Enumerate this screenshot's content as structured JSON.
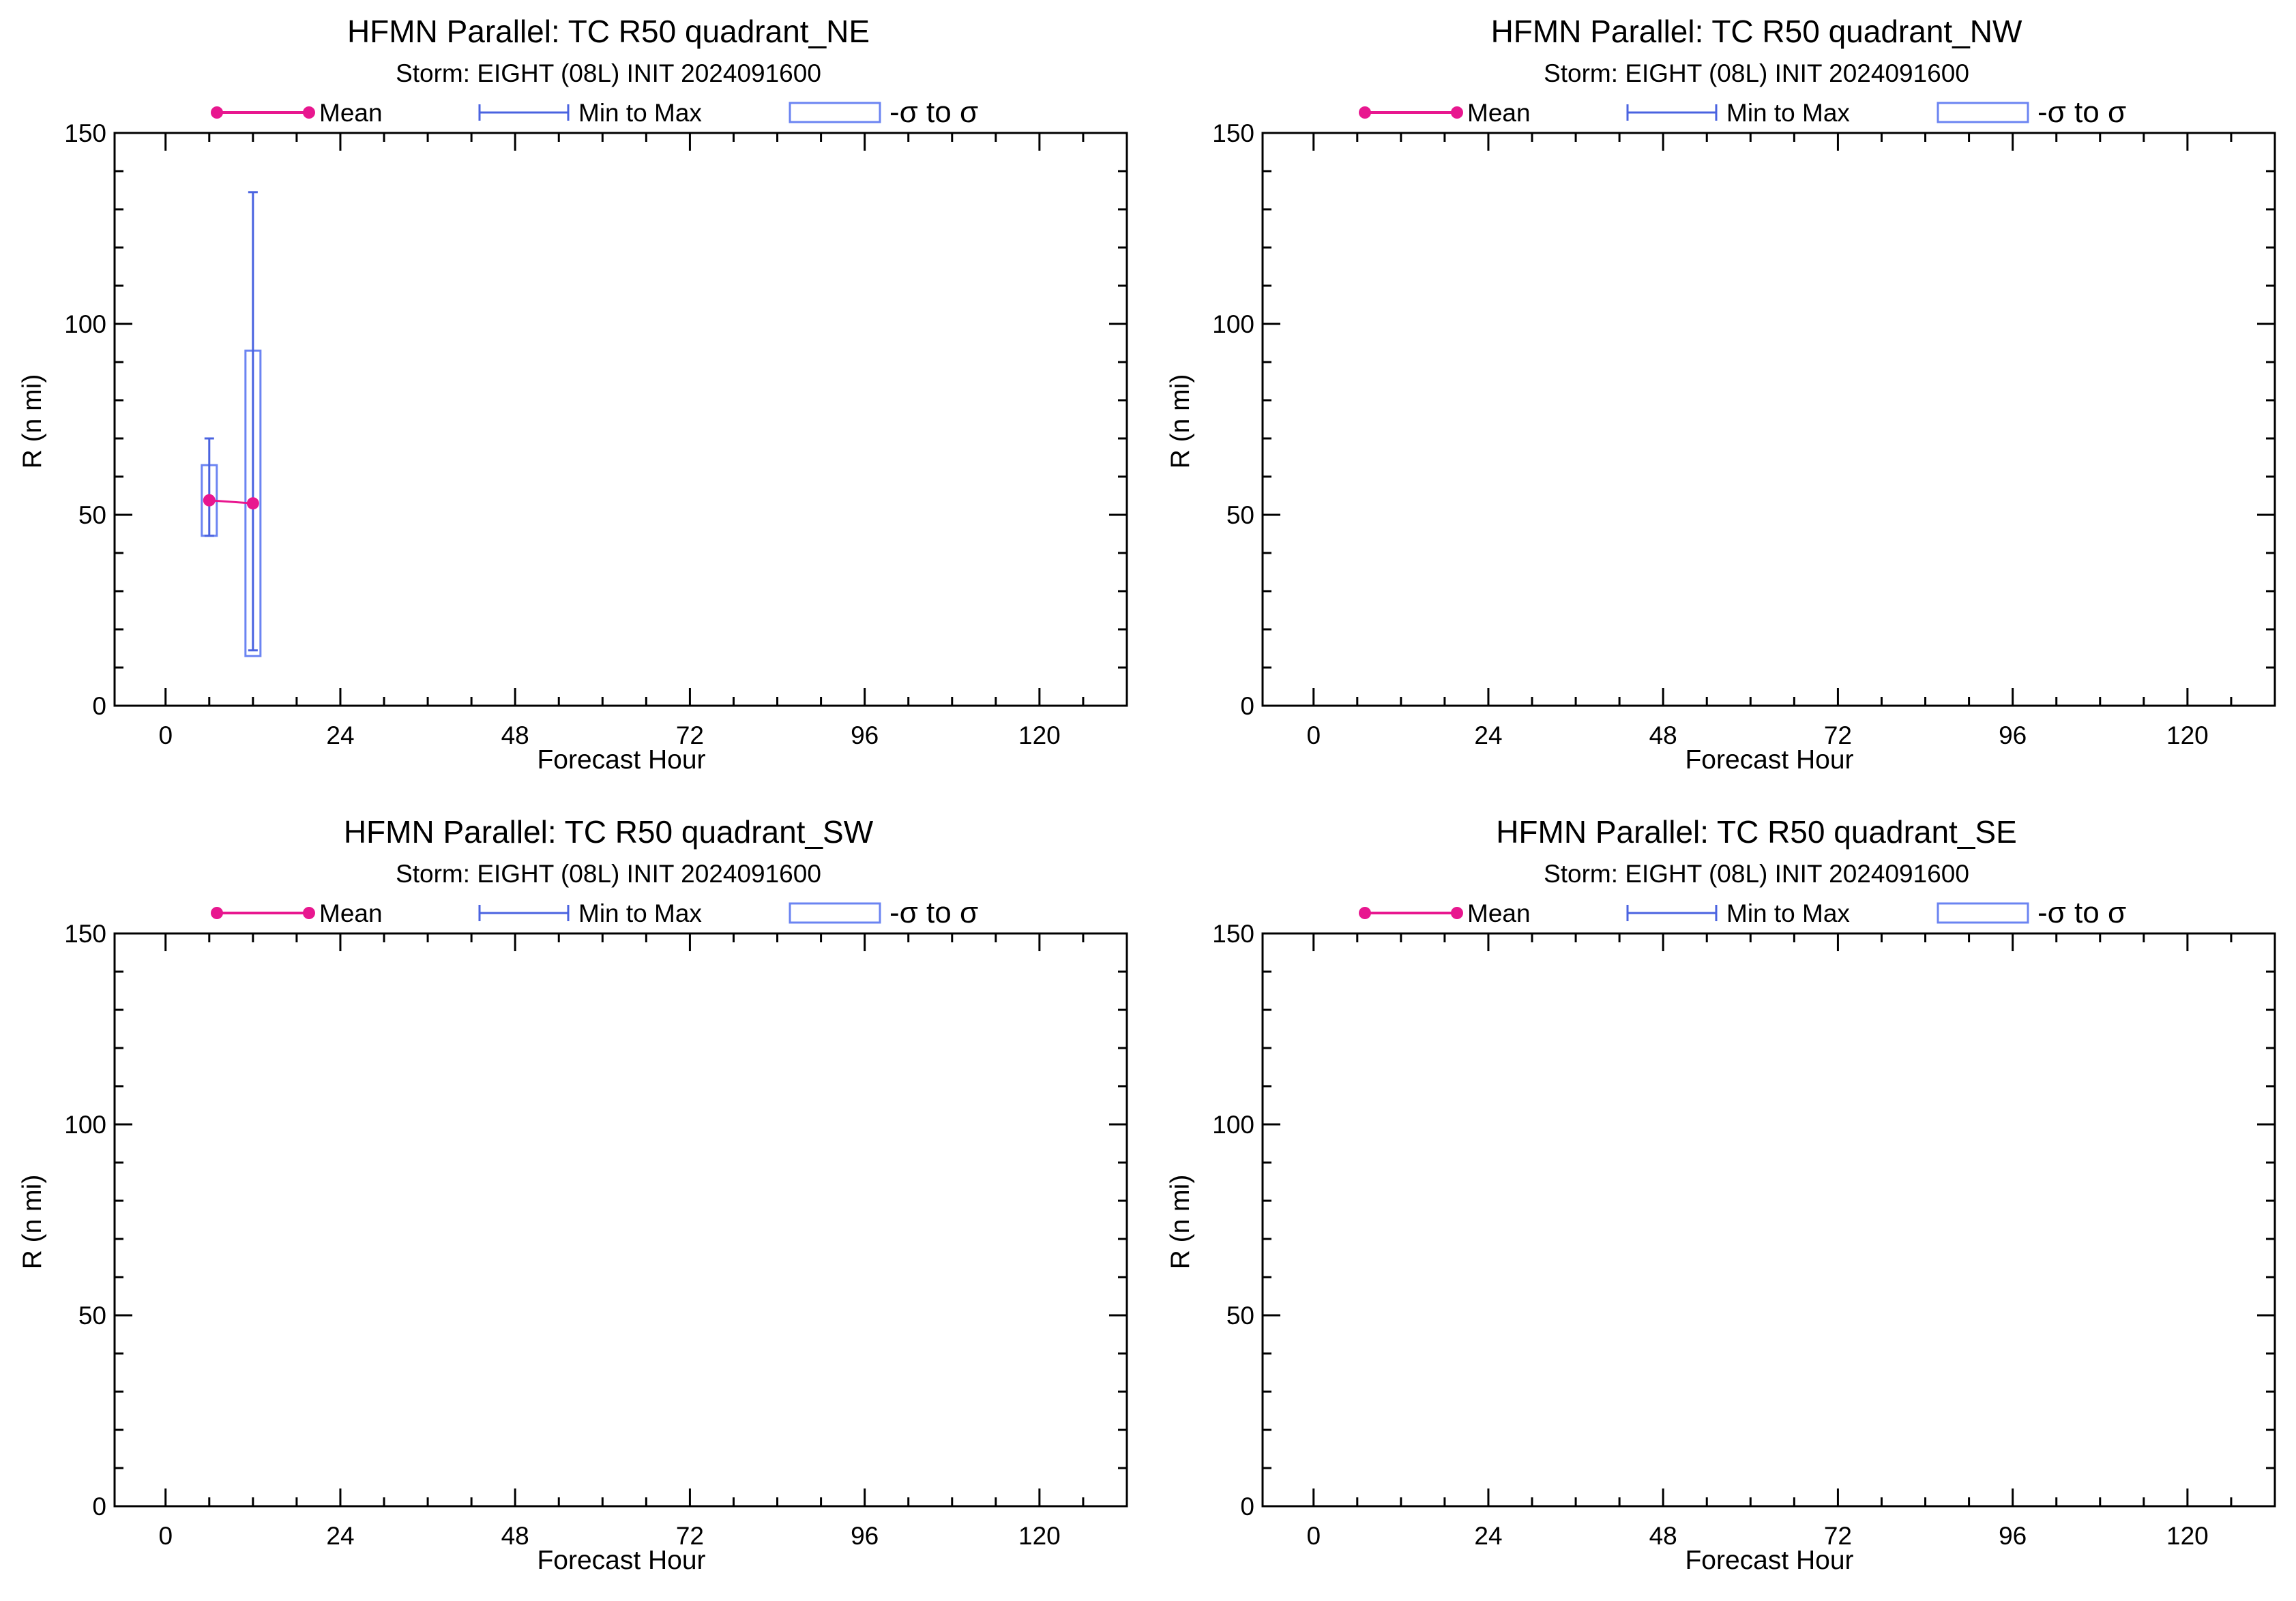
{
  "colors": {
    "mean": "#e8178f",
    "range": "#4a63e0",
    "sigma": "#6b84f2",
    "axis": "#000000"
  },
  "legend": {
    "mean": "Mean",
    "range": "Min to Max",
    "sigma": "-σ to σ"
  },
  "chart_data": [
    {
      "type": "box",
      "title": "HFMN Parallel: TC  R50 quadrant_NE",
      "subtitle": "Storm: EIGHT (08L) INIT 2024091600",
      "xlabel": "Forecast Hour",
      "ylabel": "R (n mi)",
      "xlim": [
        -7,
        132
      ],
      "ylim": [
        0,
        150
      ],
      "xticks": [
        0,
        24,
        48,
        72,
        96,
        120
      ],
      "yticks": [
        0,
        50,
        100,
        150
      ],
      "legend_position": "top",
      "points": [
        {
          "x": 6,
          "mean": 53.8,
          "min": 44.5,
          "max": 70,
          "sigma_low": 44.5,
          "sigma_high": 63
        },
        {
          "x": 12,
          "mean": 53,
          "min": 14.5,
          "max": 134.5,
          "sigma_low": 13,
          "sigma_high": 93
        }
      ]
    },
    {
      "type": "box",
      "title": "HFMN Parallel: TC  R50 quadrant_NW",
      "subtitle": "Storm: EIGHT (08L) INIT 2024091600",
      "xlabel": "Forecast Hour",
      "ylabel": "R (n mi)",
      "xlim": [
        -7,
        132
      ],
      "ylim": [
        0,
        150
      ],
      "xticks": [
        0,
        24,
        48,
        72,
        96,
        120
      ],
      "yticks": [
        0,
        50,
        100,
        150
      ],
      "legend_position": "top",
      "points": []
    },
    {
      "type": "box",
      "title": "HFMN Parallel: TC  R50 quadrant_SW",
      "subtitle": "Storm: EIGHT (08L) INIT 2024091600",
      "xlabel": "Forecast Hour",
      "ylabel": "R (n mi)",
      "xlim": [
        -7,
        132
      ],
      "ylim": [
        0,
        150
      ],
      "xticks": [
        0,
        24,
        48,
        72,
        96,
        120
      ],
      "yticks": [
        0,
        50,
        100,
        150
      ],
      "legend_position": "top",
      "points": []
    },
    {
      "type": "box",
      "title": "HFMN Parallel: TC  R50 quadrant_SE",
      "subtitle": "Storm: EIGHT (08L) INIT 2024091600",
      "xlabel": "Forecast Hour",
      "ylabel": "R (n mi)",
      "xlim": [
        -7,
        132
      ],
      "ylim": [
        0,
        150
      ],
      "xticks": [
        0,
        24,
        48,
        72,
        96,
        120
      ],
      "yticks": [
        0,
        50,
        100,
        150
      ],
      "legend_position": "top",
      "points": []
    }
  ]
}
